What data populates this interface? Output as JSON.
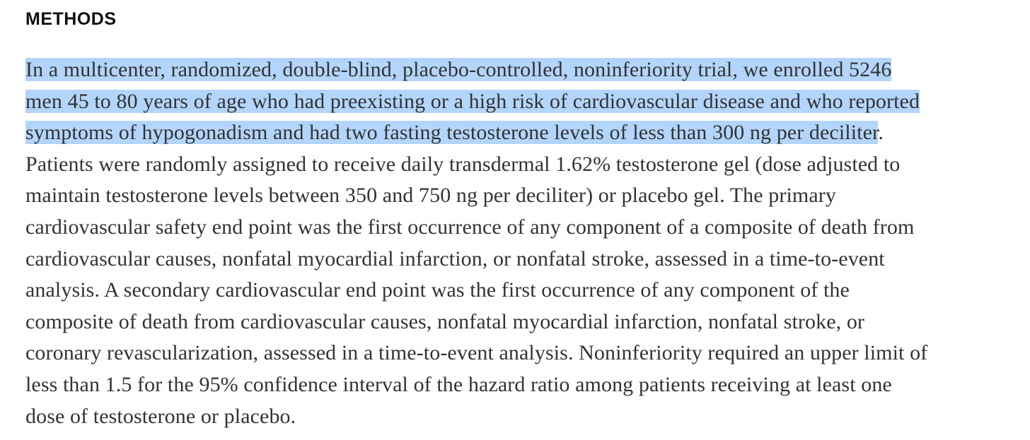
{
  "section": {
    "heading": "METHODS",
    "selection_color": "#b3d5fb",
    "lines": [
      {
        "selected": "In a multicenter, randomized, double-blind, placebo-controlled, noninferiority trial, we enrolled 5246",
        "rest": ""
      },
      {
        "selected": "men 45 to 80 years of age who had preexisting or a high risk of cardiovascular disease and who reported",
        "rest": ""
      },
      {
        "selected": "symptoms of hypogonadism and had two fasting testosterone levels of less than 300 ng per deciliter",
        "rest": "."
      },
      {
        "selected": "",
        "rest": "Patients were randomly assigned to receive daily transdermal 1.62% testosterone gel (dose adjusted to"
      },
      {
        "selected": "",
        "rest": "maintain testosterone levels between 350 and 750 ng per deciliter) or placebo gel. The primary"
      },
      {
        "selected": "",
        "rest": "cardiovascular safety end point was the first occurrence of any component of a composite of death from"
      },
      {
        "selected": "",
        "rest": "cardiovascular causes, nonfatal myocardial infarction, or nonfatal stroke, assessed in a time-to-event"
      },
      {
        "selected": "",
        "rest": "analysis. A secondary cardiovascular end point was the first occurrence of any component of the"
      },
      {
        "selected": "",
        "rest": "composite of death from cardiovascular causes, nonfatal myocardial infarction, nonfatal stroke, or"
      },
      {
        "selected": "",
        "rest": "coronary revascularization, assessed in a time-to-event analysis. Noninferiority required an upper limit of"
      },
      {
        "selected": "",
        "rest": "less than 1.5 for the 95% confidence interval of the hazard ratio among patients receiving at least one"
      },
      {
        "selected": "",
        "rest": "dose of testosterone or placebo."
      }
    ]
  }
}
